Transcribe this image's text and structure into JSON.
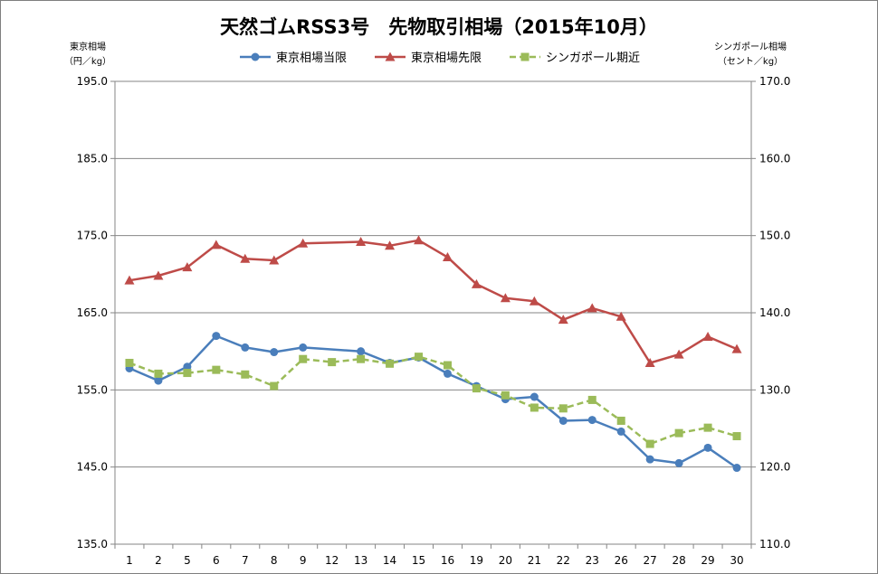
{
  "chart_data": {
    "type": "line",
    "title": "天然ゴムRSS3号　先物取引相場（2015年10月）",
    "left_axis_label": [
      "東京相場",
      "（円／kg）"
    ],
    "right_axis_label": [
      "シンガポール相場",
      "（セント／kg）"
    ],
    "categories": [
      "1",
      "2",
      "5",
      "6",
      "7",
      "8",
      "9",
      "12",
      "13",
      "14",
      "15",
      "16",
      "19",
      "20",
      "21",
      "22",
      "23",
      "26",
      "27",
      "28",
      "29",
      "30"
    ],
    "y_left": {
      "min": 135.0,
      "max": 195.0,
      "ticks": [
        "195.0",
        "185.0",
        "175.0",
        "165.0",
        "155.0",
        "145.0",
        "135.0"
      ]
    },
    "y_right": {
      "min": 110.0,
      "max": 170.0,
      "ticks": [
        "170.0",
        "160.0",
        "150.0",
        "140.0",
        "130.0",
        "120.0",
        "110.0"
      ]
    },
    "grid": true,
    "legend_position": "top",
    "series": [
      {
        "name": "東京相場当限",
        "axis": "left",
        "color": "#4a7ebb",
        "marker": "circle",
        "dash": false,
        "values": [
          157.8,
          156.2,
          158.0,
          162.0,
          160.5,
          159.9,
          160.5,
          null,
          160.0,
          158.5,
          159.2,
          157.1,
          155.5,
          153.8,
          154.1,
          151.0,
          151.1,
          149.6,
          146.0,
          145.5,
          147.5,
          144.9
        ]
      },
      {
        "name": "東京相場先限",
        "axis": "left",
        "color": "#be4b48",
        "marker": "triangle",
        "dash": false,
        "values": [
          169.2,
          169.8,
          170.9,
          173.8,
          172.0,
          171.8,
          174.0,
          null,
          174.2,
          173.7,
          174.4,
          172.2,
          168.7,
          166.9,
          166.5,
          164.1,
          165.6,
          164.5,
          158.5,
          159.6,
          161.9,
          160.3
        ]
      },
      {
        "name": "シンガポール期近",
        "axis": "right",
        "color": "#9bbb59",
        "marker": "square",
        "dash": true,
        "values": [
          133.5,
          132.1,
          132.2,
          132.6,
          132.0,
          130.5,
          134.0,
          133.6,
          134.0,
          133.4,
          134.3,
          133.2,
          130.2,
          129.3,
          127.7,
          127.6,
          128.7,
          126.0,
          123.0,
          124.4,
          125.1,
          124.0
        ]
      }
    ]
  }
}
